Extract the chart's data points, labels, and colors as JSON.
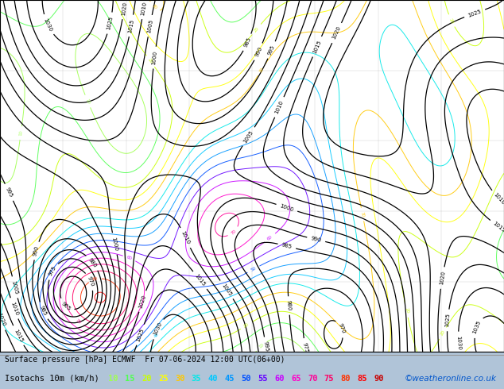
{
  "title_line1": "Surface pressure [hPa] ECMWF",
  "datetime_str": "Fr 07-06-2024 12:00 UTC(06+00)",
  "title_line2": "Isotachs 10m (km/h)",
  "copyright": "©weatheronline.co.uk",
  "legend_values": [
    10,
    15,
    20,
    25,
    30,
    35,
    40,
    45,
    50,
    55,
    60,
    65,
    70,
    75,
    80,
    85,
    90
  ],
  "legend_colors": [
    "#a0ff50",
    "#50ff50",
    "#c8ff00",
    "#ffff00",
    "#ffc800",
    "#00e8e8",
    "#00c8ff",
    "#0096ff",
    "#0050ff",
    "#6400ff",
    "#c800ff",
    "#ff00c8",
    "#ff0096",
    "#ff0064",
    "#ff3200",
    "#ff0000",
    "#c80000"
  ],
  "map_bg": "#ffffff",
  "fig_bg": "#b0c4d8",
  "fig_width": 6.34,
  "fig_height": 4.9,
  "dpi": 100,
  "bottom_bg": "#c8c8c8",
  "text_color": "#000000",
  "label_fontsize": 7.5,
  "title_fontsize": 7,
  "legend_fontsize": 7.5
}
